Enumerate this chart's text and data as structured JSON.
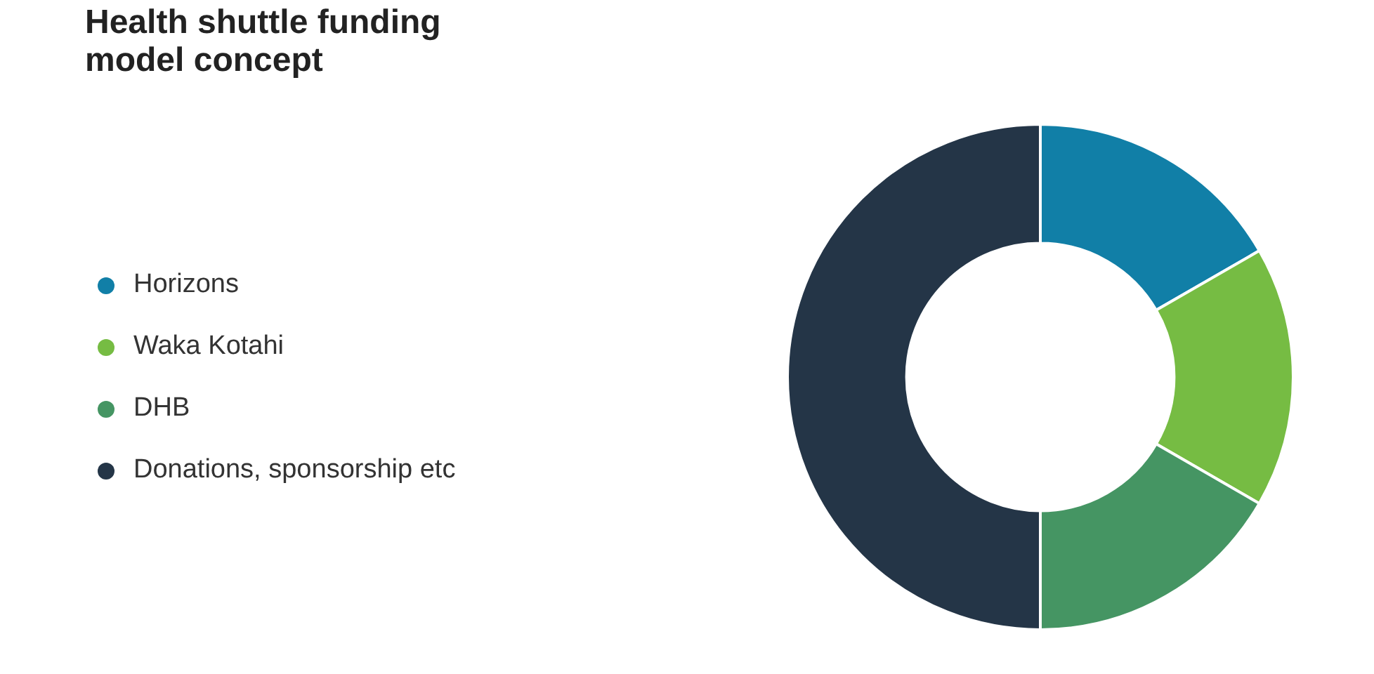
{
  "chart_data": {
    "type": "donut",
    "title": "Health shuttle funding\nmodel concept",
    "categories": [
      "Horizons",
      "Waka Kotahi",
      "DHB",
      "Donations, sponsorship etc"
    ],
    "values": [
      16.67,
      16.67,
      16.66,
      50
    ],
    "colors": [
      "#117fa7",
      "#76bc43",
      "#459563",
      "#243547"
    ],
    "legend": "left"
  }
}
